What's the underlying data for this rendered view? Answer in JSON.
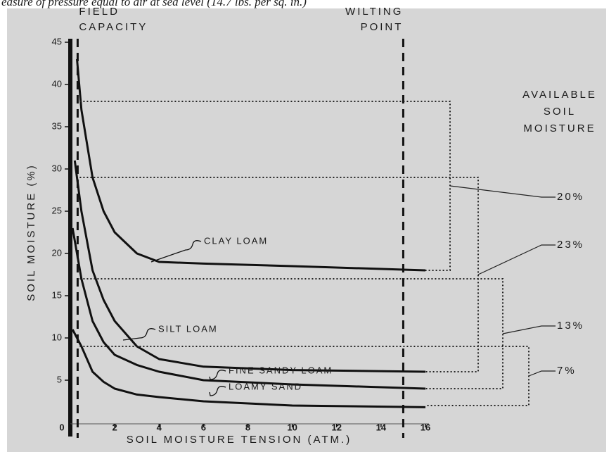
{
  "chart_data": {
    "type": "line",
    "subtitle": "easure of pressure equal to air at sea level (14.7 lbs. per sq. in.)",
    "xlabel": "SOIL MOISTURE TENSION (ATM.)",
    "ylabel": "SOIL MOISTURE (%)",
    "xlim": [
      0,
      16
    ],
    "ylim": [
      0,
      45
    ],
    "xticks": [
      0,
      2,
      4,
      6,
      8,
      10,
      12,
      14,
      16
    ],
    "yticks": [
      5,
      10,
      15,
      20,
      25,
      30,
      35,
      40,
      45
    ],
    "color": "#111111",
    "series": [
      {
        "name": "CLAY LOAM",
        "x": [
          0.3,
          0.5,
          1,
          1.5,
          2,
          3,
          4,
          6,
          10,
          16
        ],
        "values": [
          43,
          37,
          29,
          25,
          22.5,
          20,
          19,
          18.8,
          18.5,
          18
        ]
      },
      {
        "name": "SILT LOAM",
        "x": [
          0.2,
          0.5,
          1,
          1.5,
          2,
          3,
          4,
          6,
          10,
          16
        ],
        "values": [
          31,
          25,
          18,
          14.5,
          12,
          9,
          7.5,
          6.6,
          6.2,
          6
        ]
      },
      {
        "name": "FINE SANDY LOAM",
        "x": [
          0.1,
          0.5,
          1,
          1.5,
          2,
          3,
          4,
          6,
          10,
          16
        ],
        "values": [
          23,
          17,
          12,
          9.5,
          8,
          6.8,
          6,
          5,
          4.5,
          4
        ]
      },
      {
        "name": "LOAMY SAND",
        "x": [
          0.1,
          0.5,
          1,
          1.5,
          2,
          3,
          4,
          6,
          10,
          16
        ],
        "values": [
          11,
          9,
          6,
          4.8,
          4,
          3.3,
          3,
          2.5,
          2,
          1.8
        ]
      }
    ],
    "reference_lines": [
      {
        "label_lines": [
          "FIELD",
          "CAPACITY"
        ],
        "x": 0.33
      },
      {
        "label_lines": [
          "WILTING",
          "POINT"
        ],
        "x": 15
      }
    ],
    "available_title_lines": [
      "AVAILABLE",
      "SOIL",
      "MOISTURE"
    ],
    "available": [
      {
        "upper": 38,
        "lower": 18,
        "value": 20,
        "value_label": "20%"
      },
      {
        "upper": 29,
        "lower": 6,
        "value": 23,
        "value_label": "23%"
      },
      {
        "upper": 17,
        "lower": 4,
        "value": 13,
        "value_label": "13%"
      },
      {
        "upper": 9,
        "lower": 2,
        "value": 7,
        "value_label": "7%"
      }
    ]
  }
}
